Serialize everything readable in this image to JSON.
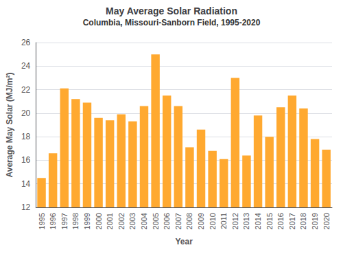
{
  "chart_data": {
    "type": "bar",
    "title": "May Average Solar Radiation",
    "subtitle": "Columbia, Missouri-Sanborn Field, 1995-2020",
    "xlabel": "Year",
    "ylabel": "Average May Solar (MJ/m²)",
    "categories": [
      "1995",
      "1996",
      "1997",
      "1998",
      "1999",
      "2000",
      "2001",
      "2002",
      "2003",
      "2004",
      "2005",
      "2006",
      "2007",
      "2008",
      "2009",
      "2010",
      "2011",
      "2012",
      "2013",
      "2014",
      "2015",
      "2016",
      "2017",
      "2018",
      "2019",
      "2020"
    ],
    "values": [
      14.5,
      16.6,
      22.1,
      21.2,
      20.9,
      19.6,
      19.4,
      19.9,
      19.3,
      20.6,
      25.0,
      21.5,
      20.6,
      17.1,
      18.6,
      16.8,
      16.1,
      23.0,
      16.4,
      19.8,
      18.0,
      20.5,
      21.5,
      20.4,
      17.8,
      16.9
    ],
    "color": "#FFA930",
    "ylim": [
      12,
      26
    ],
    "yticks": [
      12,
      14,
      16,
      18,
      20,
      22,
      24,
      26
    ],
    "grid": true
  }
}
